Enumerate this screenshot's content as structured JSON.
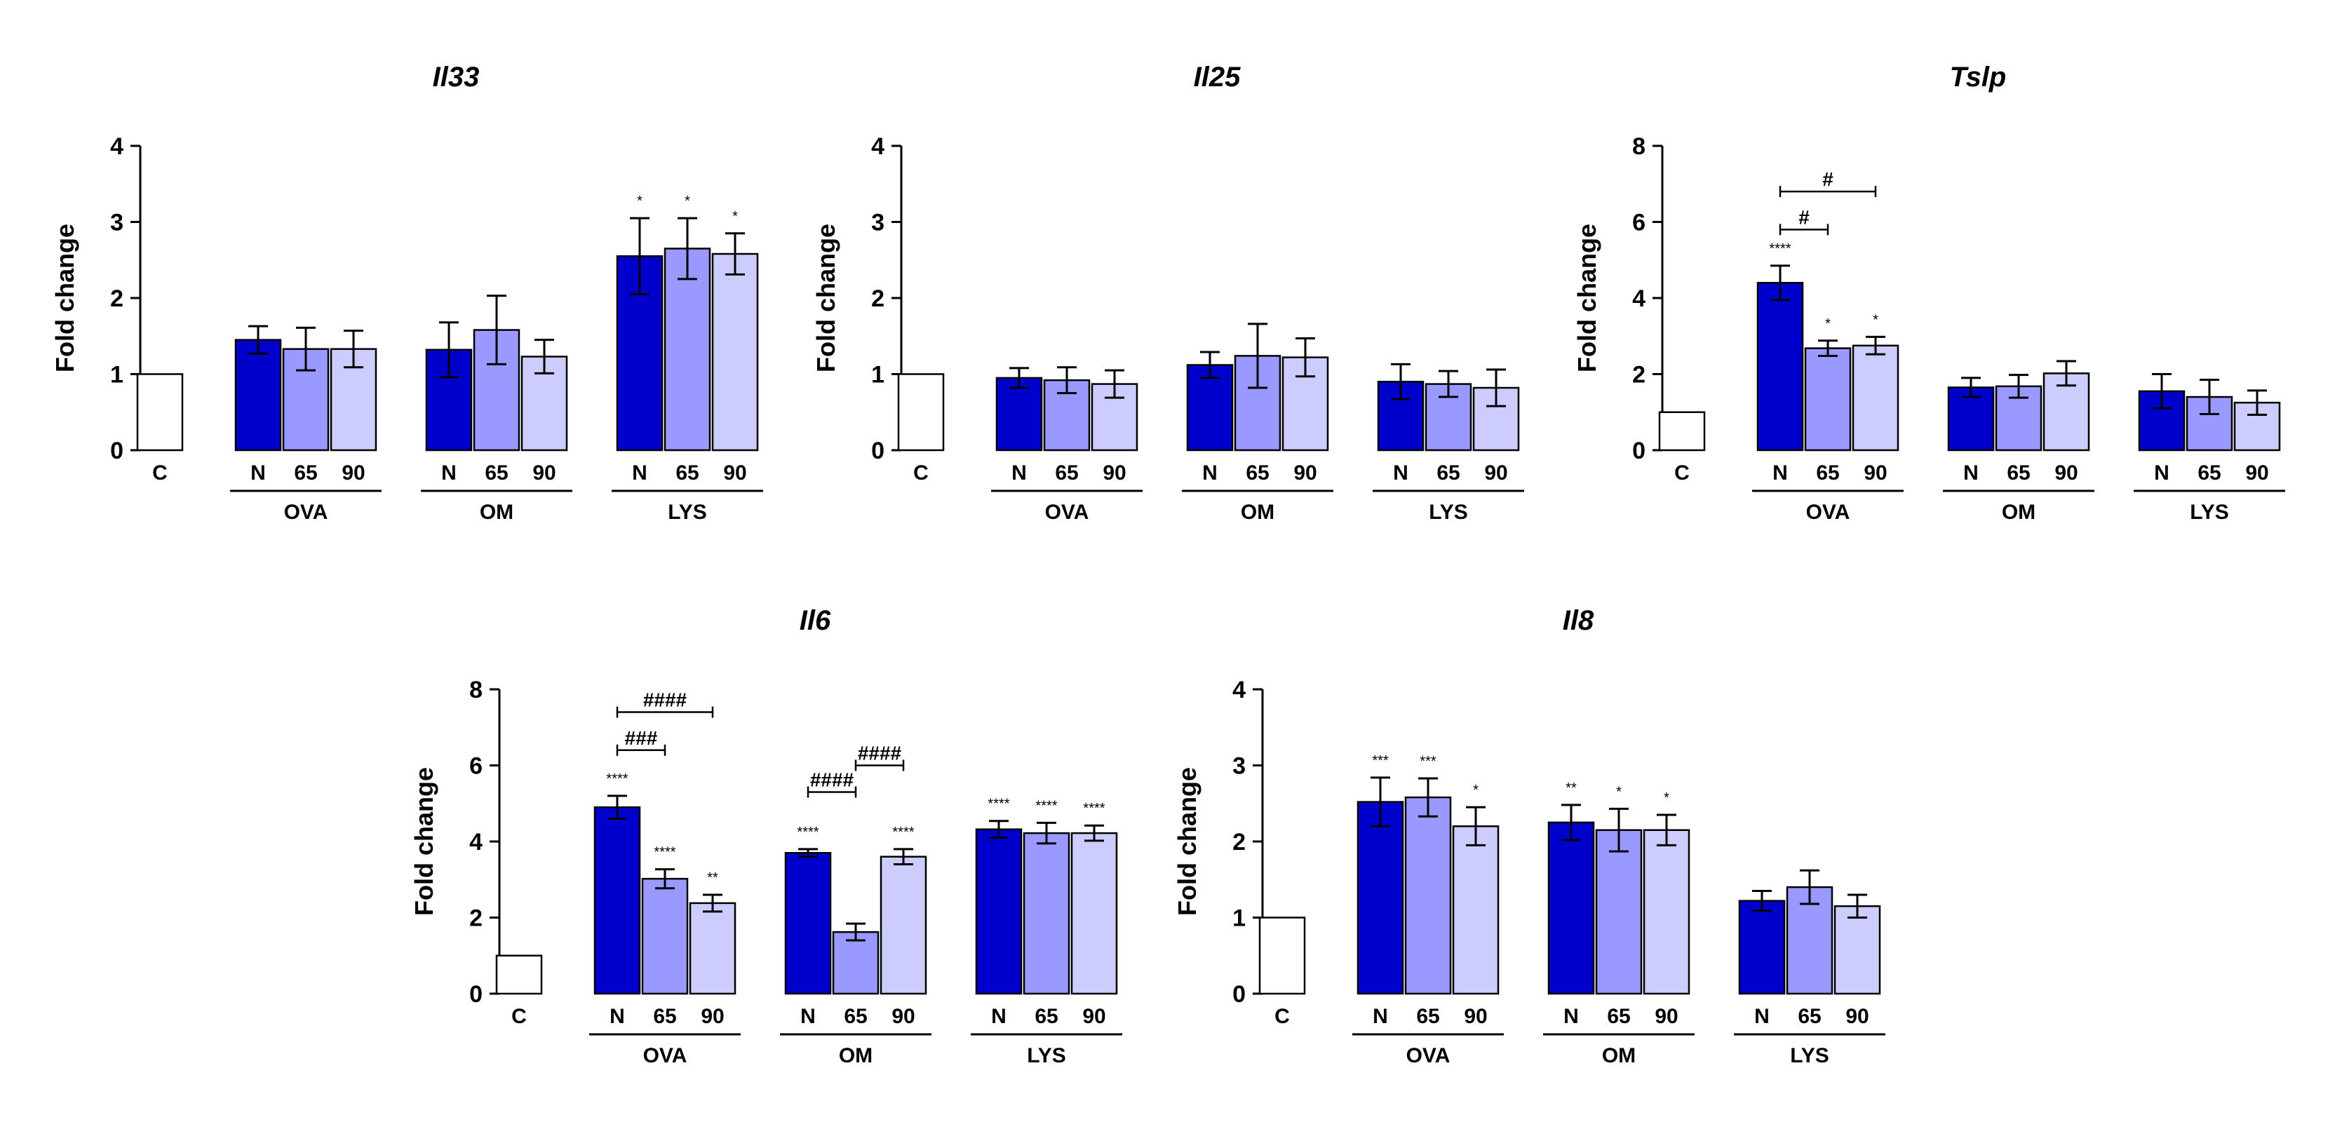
{
  "figure": {
    "categories": [
      "C",
      "N",
      "65",
      "90",
      "N",
      "65",
      "90",
      "N",
      "65",
      "90"
    ],
    "groups": [
      "OVA",
      "OM",
      "LYS"
    ],
    "bar_colors": [
      "#ffffff",
      "#0000cc",
      "#9999ff",
      "#ccccff"
    ],
    "ylabel": "Fold change"
  },
  "chart_data": [
    {
      "type": "bar",
      "title": "Il33",
      "ylabel": "Fold change",
      "ylim": [
        0,
        4
      ],
      "yticks": [
        0,
        1,
        2,
        3,
        4
      ],
      "categories": [
        "C",
        "N",
        "65",
        "90",
        "N",
        "65",
        "90",
        "N",
        "65",
        "90"
      ],
      "groups": [
        "OVA",
        "OM",
        "LYS"
      ],
      "values": [
        1.0,
        1.45,
        1.33,
        1.33,
        1.32,
        1.58,
        1.23,
        2.55,
        2.65,
        2.58
      ],
      "errors": [
        0,
        0.18,
        0.28,
        0.24,
        0.36,
        0.45,
        0.22,
        0.5,
        0.4,
        0.27
      ],
      "markers": [
        "",
        "",
        "",
        "",
        "",
        "",
        "",
        "*",
        "*",
        "*"
      ],
      "brackets": []
    },
    {
      "type": "bar",
      "title": "Il25",
      "ylabel": "Fold change",
      "ylim": [
        0,
        4
      ],
      "yticks": [
        0,
        1,
        2,
        3,
        4
      ],
      "categories": [
        "C",
        "N",
        "65",
        "90",
        "N",
        "65",
        "90",
        "N",
        "65",
        "90"
      ],
      "groups": [
        "OVA",
        "OM",
        "LYS"
      ],
      "values": [
        1.0,
        0.95,
        0.92,
        0.87,
        1.12,
        1.24,
        1.22,
        0.9,
        0.87,
        0.82
      ],
      "errors": [
        0,
        0.13,
        0.17,
        0.18,
        0.17,
        0.42,
        0.25,
        0.23,
        0.17,
        0.24
      ],
      "markers": [
        "",
        "",
        "",
        "",
        "",
        "",
        "",
        "",
        "",
        ""
      ],
      "brackets": []
    },
    {
      "type": "bar",
      "title": "Tslp",
      "ylabel": "Fold change",
      "ylim": [
        0,
        8
      ],
      "yticks": [
        0,
        2,
        4,
        6,
        8
      ],
      "categories": [
        "C",
        "N",
        "65",
        "90",
        "N",
        "65",
        "90",
        "N",
        "65",
        "90"
      ],
      "groups": [
        "OVA",
        "OM",
        "LYS"
      ],
      "values": [
        1.0,
        4.4,
        2.68,
        2.75,
        1.65,
        1.68,
        2.02,
        1.55,
        1.4,
        1.25
      ],
      "errors": [
        0,
        0.45,
        0.2,
        0.23,
        0.25,
        0.3,
        0.32,
        0.45,
        0.45,
        0.32
      ],
      "markers": [
        "",
        "****",
        "*",
        "*",
        "",
        "",
        "",
        "",
        "",
        ""
      ],
      "brackets": [
        {
          "from": 1,
          "to": 2,
          "y": 5.8,
          "label": "#"
        },
        {
          "from": 1,
          "to": 3,
          "y": 6.8,
          "label": "#"
        }
      ]
    },
    {
      "type": "bar",
      "title": "Il6",
      "ylabel": "Fold change",
      "ylim": [
        0,
        8
      ],
      "yticks": [
        0,
        2,
        4,
        6,
        8
      ],
      "categories": [
        "C",
        "N",
        "65",
        "90",
        "N",
        "65",
        "90",
        "N",
        "65",
        "90"
      ],
      "groups": [
        "OVA",
        "OM",
        "LYS"
      ],
      "values": [
        1.0,
        4.9,
        3.02,
        2.38,
        3.7,
        1.62,
        3.6,
        4.32,
        4.22,
        4.22
      ],
      "errors": [
        0,
        0.3,
        0.25,
        0.22,
        0.1,
        0.22,
        0.2,
        0.22,
        0.27,
        0.2
      ],
      "markers": [
        "",
        "****",
        "****",
        "**",
        "****",
        "",
        "****",
        "****",
        "****",
        "****"
      ],
      "brackets": [
        {
          "from": 1,
          "to": 2,
          "y": 6.4,
          "label": "###"
        },
        {
          "from": 1,
          "to": 3,
          "y": 7.4,
          "label": "####"
        },
        {
          "from": 4,
          "to": 5,
          "y": 5.3,
          "label": "####"
        },
        {
          "from": 5,
          "to": 6,
          "y": 6.0,
          "label": "####"
        }
      ]
    },
    {
      "type": "bar",
      "title": "Il8",
      "ylabel": "Fold change",
      "ylim": [
        0,
        4
      ],
      "yticks": [
        0,
        1,
        2,
        3,
        4
      ],
      "categories": [
        "C",
        "N",
        "65",
        "90",
        "N",
        "65",
        "90",
        "N",
        "65",
        "90"
      ],
      "groups": [
        "OVA",
        "OM",
        "LYS"
      ],
      "values": [
        1.0,
        2.52,
        2.58,
        2.2,
        2.25,
        2.15,
        2.15,
        1.22,
        1.4,
        1.15
      ],
      "errors": [
        0,
        0.32,
        0.25,
        0.25,
        0.23,
        0.28,
        0.2,
        0.13,
        0.22,
        0.15
      ],
      "markers": [
        "",
        "***",
        "***",
        "*",
        "**",
        "*",
        "*",
        "",
        "",
        ""
      ],
      "brackets": []
    }
  ]
}
